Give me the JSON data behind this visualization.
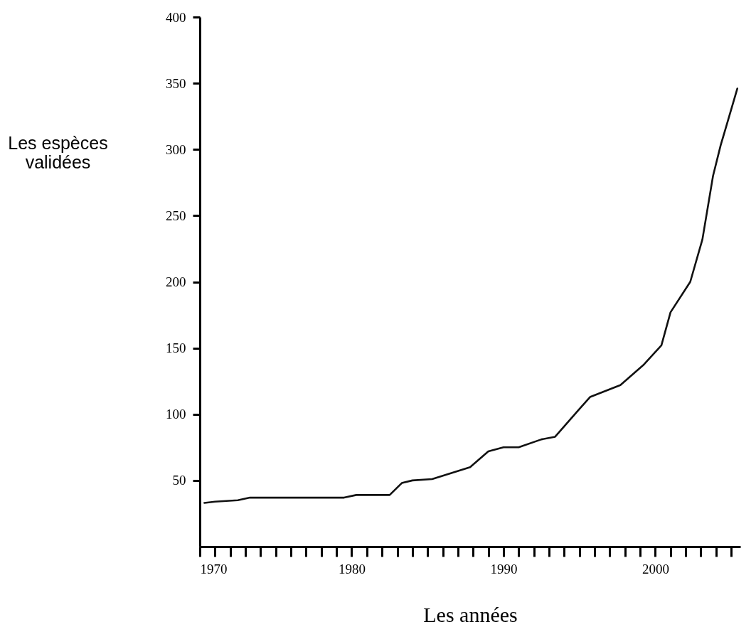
{
  "chart_data": {
    "type": "line",
    "xlabel": "Les années",
    "ylabel": "Les espèces validées",
    "x": [
      1970.3,
      1971,
      1972.5,
      1973.3,
      1979.5,
      1980.3,
      1982.5,
      1983.3,
      1984,
      1985.3,
      1987.8,
      1989,
      1990,
      1991,
      1992.5,
      1993.4,
      1995,
      1995.7,
      1997.7,
      1999.2,
      2000.4,
      2001,
      2002.3,
      2003.1,
      2003.8,
      2004.3,
      2005.4
    ],
    "series": [
      {
        "color": "#111111",
        "values": [
          33,
          34,
          35,
          37,
          37,
          39,
          39,
          48,
          50,
          51,
          60,
          72,
          75,
          75,
          81,
          83,
          104,
          113,
          122,
          137,
          152,
          177,
          200,
          232,
          280,
          303,
          346
        ]
      }
    ],
    "xlim": [
      1970,
      2005.6
    ],
    "xticks": [
      1970,
      {
        "value": 1971,
        "label": null
      },
      {
        "value": 1972,
        "label": null
      },
      {
        "value": 1973,
        "label": null
      },
      {
        "value": 1974,
        "label": null
      },
      {
        "value": 1975,
        "label": null
      },
      {
        "value": 1976,
        "label": null
      },
      {
        "value": 1977,
        "label": null
      },
      {
        "value": 1978,
        "label": null
      },
      {
        "value": 1979,
        "label": null
      },
      1980,
      {
        "value": 1981,
        "label": null
      },
      {
        "value": 1982,
        "label": null
      },
      {
        "value": 1983,
        "label": null
      },
      {
        "value": 1984,
        "label": null
      },
      {
        "value": 1985,
        "label": null
      },
      {
        "value": 1986,
        "label": null
      },
      {
        "value": 1987,
        "label": null
      },
      {
        "value": 1988,
        "label": null
      },
      {
        "value": 1989,
        "label": null
      },
      1990,
      {
        "value": 1991,
        "label": null
      },
      {
        "value": 1992,
        "label": null
      },
      {
        "value": 1993,
        "label": null
      },
      {
        "value": 1994,
        "label": null
      },
      {
        "value": 1995,
        "label": null
      },
      {
        "value": 1996,
        "label": null
      },
      {
        "value": 1997,
        "label": null
      },
      {
        "value": 1998,
        "label": null
      },
      {
        "value": 1999,
        "label": null
      },
      2000,
      {
        "value": 2001,
        "label": null
      },
      {
        "value": 2002,
        "label": null
      },
      {
        "value": 2003,
        "label": null
      },
      {
        "value": 2004,
        "label": null
      },
      {
        "value": 2005,
        "label": null
      }
    ],
    "ylim": [
      0,
      400
    ],
    "yticks": [
      50,
      100,
      150,
      200,
      250,
      300,
      350,
      400
    ],
    "grid": false,
    "marker": "none",
    "line_style": "solid"
  }
}
